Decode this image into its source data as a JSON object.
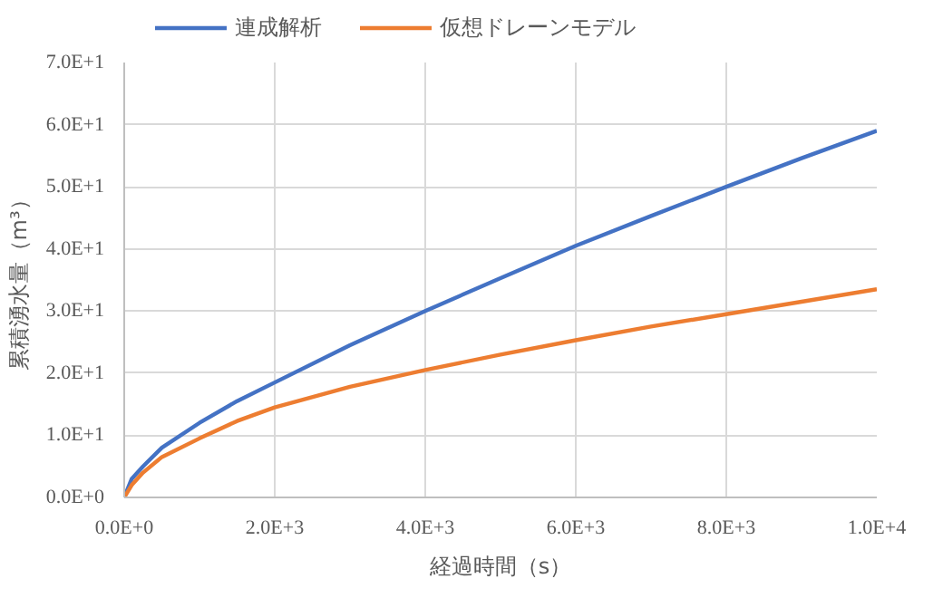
{
  "chart_data": {
    "type": "line",
    "xlabel": "経過時間（s）",
    "ylabel": "累積湧水量（m³）",
    "xlim": [
      0,
      10000
    ],
    "ylim": [
      0,
      70
    ],
    "xticks": [
      {
        "value": 0,
        "label": "0.0E+0"
      },
      {
        "value": 2000,
        "label": "2.0E+3"
      },
      {
        "value": 4000,
        "label": "4.0E+3"
      },
      {
        "value": 6000,
        "label": "6.0E+3"
      },
      {
        "value": 8000,
        "label": "8.0E+3"
      },
      {
        "value": 10000,
        "label": "1.0E+4"
      }
    ],
    "yticks": [
      {
        "value": 0,
        "label": "0.0E+0"
      },
      {
        "value": 10,
        "label": "1.0E+1"
      },
      {
        "value": 20,
        "label": "2.0E+1"
      },
      {
        "value": 30,
        "label": "3.0E+1"
      },
      {
        "value": 40,
        "label": "4.0E+1"
      },
      {
        "value": 50,
        "label": "5.0E+1"
      },
      {
        "value": 60,
        "label": "6.0E+1"
      },
      {
        "value": 70,
        "label": "7.0E+1"
      }
    ],
    "x": [
      0,
      100,
      250,
      500,
      1000,
      1500,
      2000,
      3000,
      4000,
      5000,
      6000,
      7000,
      8000,
      9000,
      10000
    ],
    "series": [
      {
        "name": "連成解析",
        "color": "#4472c4",
        "values": [
          0,
          3,
          5,
          8,
          12,
          15.5,
          18.5,
          24.5,
          30,
          35.3,
          40.5,
          45.3,
          50,
          54.6,
          59
        ]
      },
      {
        "name": "仮想ドレーンモデル",
        "color": "#ed7d31",
        "values": [
          0,
          2,
          4,
          6.5,
          9.5,
          12.3,
          14.5,
          17.8,
          20.5,
          23,
          25.3,
          27.5,
          29.5,
          31.5,
          33.5
        ]
      }
    ],
    "grid": true,
    "legend": "top",
    "marker": "none",
    "line_style": "solid"
  }
}
